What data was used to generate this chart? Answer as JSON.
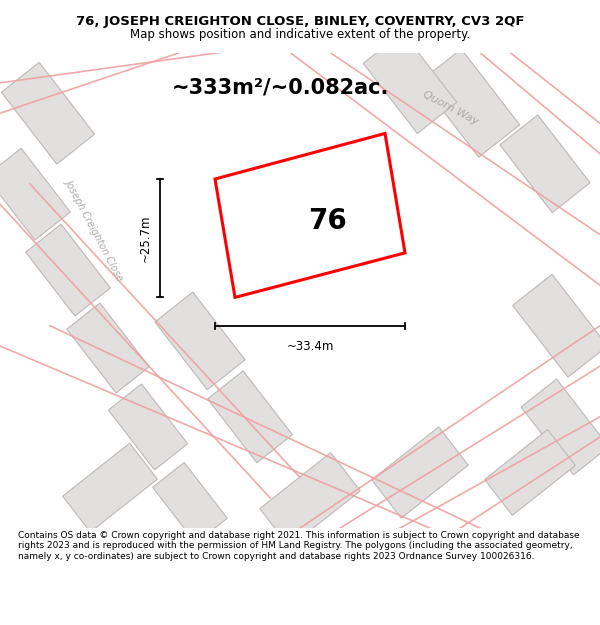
{
  "title_line1": "76, JOSEPH CREIGHTON CLOSE, BINLEY, COVENTRY, CV3 2QF",
  "title_line2": "Map shows position and indicative extent of the property.",
  "area_text": "~333m²/~0.082ac.",
  "label_76": "76",
  "dim_width": "~33.4m",
  "dim_height": "~25.7m",
  "street_label1": "Quorn Way",
  "street_label2": "Joseph Creighton Close",
  "footer": "Contains OS data © Crown copyright and database right 2021. This information is subject to Crown copyright and database rights 2023 and is reproduced with the permission of HM Land Registry. The polygons (including the associated geometry, namely x, y co-ordinates) are subject to Crown copyright and database rights 2023 Ordnance Survey 100026316.",
  "map_bg": "#eeecec",
  "polygon_color": "#ff0000",
  "road_color": "#f0a0a0",
  "title_bg": "#ffffff",
  "footer_bg": "#ffffff",
  "building_fill": "#e2dfdf",
  "building_stroke": "#c0b8b8"
}
